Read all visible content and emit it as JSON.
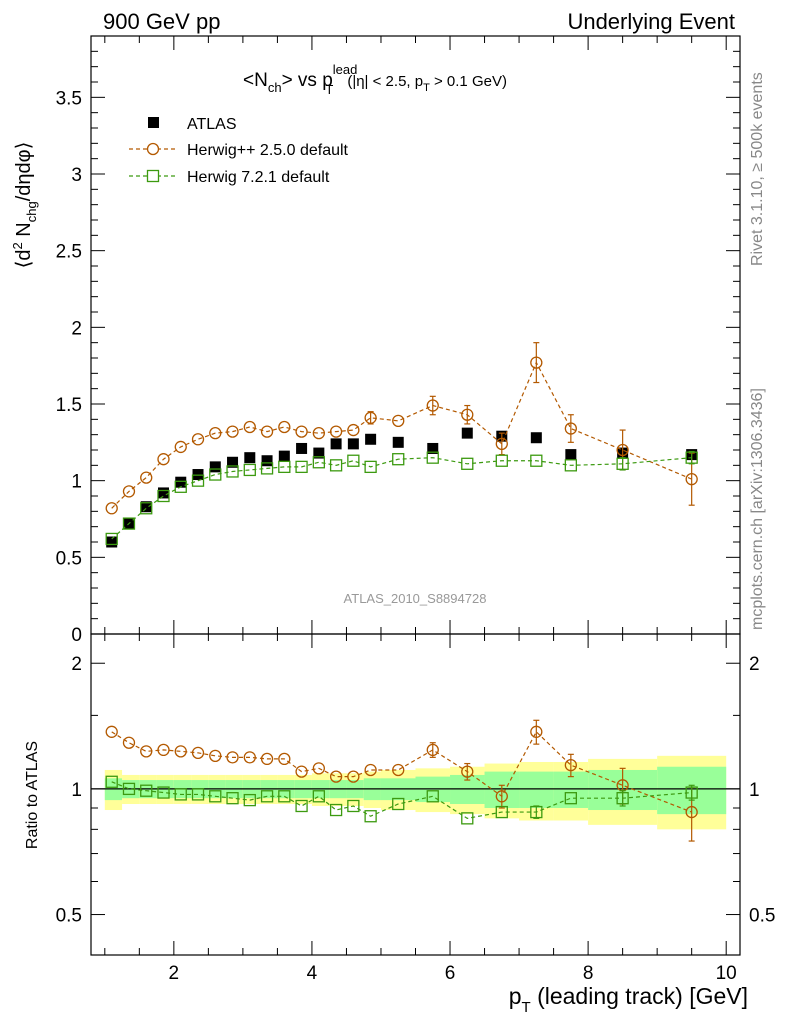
{
  "header": {
    "left": "900 GeV pp",
    "right": "Underlying Event"
  },
  "side_labels": {
    "rivet": "Rivet 3.1.10, ≥ 500k events",
    "mcplots": "mcplots.cern.ch [arXiv:1306.3436]"
  },
  "colors": {
    "atlas": "#000000",
    "herwigpp": "#b35900",
    "herwig7": "#3c9a10",
    "band_inner": "#99ff99",
    "band_outer": "#ffff99",
    "watermark": "#999999"
  },
  "chart_data": [
    {
      "type": "scatter",
      "panel": "main",
      "title": {
        "prefix": "<N",
        "prefix_sub": "ch",
        "mid": "> vs p",
        "p_sup": "lead",
        "p_sub": "T",
        "cut_a": "(|η| < 2.5, p",
        "cut_sub": "T",
        "cut_b": " > 0.1 GeV)"
      },
      "ylabel": {
        "a": "⟨d",
        "sup": "2",
        "b": " N",
        "sub": "chg",
        "c": "/dηdφ⟩"
      },
      "watermark": "ATLAS_2010_S8894728",
      "xlim": [
        0.8,
        10.2
      ],
      "ylim": [
        0,
        3.9
      ],
      "yticks": [
        0,
        0.5,
        1,
        1.5,
        2,
        2.5,
        3,
        3.5
      ],
      "ytick_labels": [
        "0",
        "0.5",
        "1",
        "1.5",
        "2",
        "2.5",
        "3",
        "3.5"
      ],
      "legend_position": "top-left",
      "x": [
        1.1,
        1.35,
        1.6,
        1.85,
        2.1,
        2.35,
        2.6,
        2.85,
        3.1,
        3.35,
        3.6,
        3.85,
        4.1,
        4.35,
        4.6,
        4.85,
        5.25,
        5.75,
        6.25,
        6.75,
        7.25,
        7.75,
        8.5,
        9.5
      ],
      "series": [
        {
          "name": "ATLAS",
          "marker": "filled-square",
          "values": [
            0.6,
            0.72,
            0.83,
            0.92,
            0.99,
            1.04,
            1.09,
            1.12,
            1.15,
            1.13,
            1.16,
            1.21,
            1.18,
            1.24,
            1.24,
            1.27,
            1.25,
            1.21,
            1.31,
            1.29,
            1.28,
            1.17,
            1.18,
            1.17
          ],
          "errors": [
            0.01,
            0.01,
            0.01,
            0.01,
            0.01,
            0.01,
            0.01,
            0.01,
            0.01,
            0.01,
            0.01,
            0.01,
            0.01,
            0.01,
            0.01,
            0.01,
            0.01,
            0.01,
            0.01,
            0.01,
            0.01,
            0.01,
            0.01,
            0.01
          ]
        },
        {
          "name": "Herwig++ 2.5.0 default",
          "marker": "open-circle",
          "values": [
            0.82,
            0.93,
            1.02,
            1.14,
            1.22,
            1.27,
            1.31,
            1.32,
            1.35,
            1.32,
            1.35,
            1.32,
            1.31,
            1.32,
            1.33,
            1.41,
            1.39,
            1.49,
            1.43,
            1.24,
            1.77,
            1.34,
            1.2,
            1.01
          ],
          "errors": [
            0.01,
            0.01,
            0.01,
            0.01,
            0.01,
            0.01,
            0.01,
            0.01,
            0.01,
            0.01,
            0.01,
            0.01,
            0.02,
            0.02,
            0.03,
            0.04,
            0.03,
            0.06,
            0.06,
            0.07,
            0.13,
            0.09,
            0.13,
            0.17
          ]
        },
        {
          "name": "Herwig 7.2.1 default",
          "marker": "open-square",
          "values": [
            0.62,
            0.72,
            0.82,
            0.9,
            0.96,
            1.0,
            1.04,
            1.06,
            1.07,
            1.08,
            1.09,
            1.09,
            1.12,
            1.1,
            1.13,
            1.09,
            1.14,
            1.15,
            1.11,
            1.13,
            1.13,
            1.1,
            1.11,
            1.15
          ],
          "errors": [
            0.01,
            0.01,
            0.01,
            0.01,
            0.01,
            0.01,
            0.01,
            0.01,
            0.01,
            0.01,
            0.01,
            0.01,
            0.01,
            0.01,
            0.01,
            0.01,
            0.02,
            0.02,
            0.02,
            0.02,
            0.03,
            0.03,
            0.04,
            0.04
          ]
        }
      ]
    },
    {
      "type": "scatter",
      "panel": "ratio",
      "ylabel": "Ratio to ATLAS",
      "xlabel": {
        "a": "p",
        "sub": "T",
        "b": " (leading track) [GeV]"
      },
      "xlim": [
        0.8,
        10.2
      ],
      "ylim": [
        0.4,
        2.35
      ],
      "yscale": "log",
      "yticks": [
        0.5,
        1,
        2
      ],
      "ytick_labels": [
        "0.5",
        "1",
        "2"
      ],
      "xticks": [
        2,
        4,
        6,
        8,
        10
      ],
      "xtick_labels": [
        "2",
        "4",
        "6",
        "8",
        "10"
      ],
      "x": [
        1.1,
        1.35,
        1.6,
        1.85,
        2.1,
        2.35,
        2.6,
        2.85,
        3.1,
        3.35,
        3.6,
        3.85,
        4.1,
        4.35,
        4.6,
        4.85,
        5.25,
        5.75,
        6.25,
        6.75,
        7.25,
        7.75,
        8.5,
        9.5
      ],
      "bin_edges": [
        1.0,
        1.25,
        1.5,
        1.75,
        2.0,
        2.25,
        2.5,
        2.75,
        3.0,
        3.25,
        3.5,
        3.75,
        4.0,
        4.25,
        4.5,
        4.75,
        5.0,
        5.5,
        6.0,
        6.5,
        7.0,
        7.5,
        8.0,
        9.0,
        10.0
      ],
      "band_inner": [
        0.06,
        0.05,
        0.05,
        0.05,
        0.05,
        0.05,
        0.05,
        0.05,
        0.05,
        0.05,
        0.05,
        0.05,
        0.05,
        0.05,
        0.05,
        0.06,
        0.06,
        0.07,
        0.08,
        0.1,
        0.1,
        0.1,
        0.11,
        0.13
      ],
      "band_outer": [
        0.11,
        0.08,
        0.08,
        0.08,
        0.08,
        0.08,
        0.08,
        0.08,
        0.08,
        0.08,
        0.08,
        0.08,
        0.09,
        0.09,
        0.09,
        0.1,
        0.11,
        0.12,
        0.13,
        0.15,
        0.16,
        0.16,
        0.18,
        0.2
      ],
      "series": [
        {
          "name": "Herwig++ 2.5.0 default",
          "marker": "open-circle",
          "values": [
            1.37,
            1.29,
            1.23,
            1.24,
            1.23,
            1.22,
            1.2,
            1.19,
            1.19,
            1.18,
            1.18,
            1.1,
            1.12,
            1.07,
            1.07,
            1.11,
            1.11,
            1.24,
            1.1,
            0.96,
            1.37,
            1.14,
            1.02,
            0.88
          ],
          "errors": [
            0.02,
            0.02,
            0.02,
            0.02,
            0.02,
            0.02,
            0.02,
            0.02,
            0.02,
            0.02,
            0.02,
            0.02,
            0.02,
            0.02,
            0.03,
            0.03,
            0.03,
            0.05,
            0.05,
            0.06,
            0.09,
            0.07,
            0.1,
            0.13
          ]
        },
        {
          "name": "Herwig 7.2.1 default",
          "marker": "open-square",
          "values": [
            1.04,
            1.0,
            0.99,
            0.98,
            0.97,
            0.97,
            0.96,
            0.95,
            0.94,
            0.96,
            0.96,
            0.91,
            0.96,
            0.89,
            0.91,
            0.86,
            0.92,
            0.96,
            0.85,
            0.88,
            0.88,
            0.95,
            0.95,
            0.98
          ],
          "errors": [
            0.01,
            0.01,
            0.01,
            0.01,
            0.01,
            0.01,
            0.01,
            0.01,
            0.01,
            0.01,
            0.01,
            0.01,
            0.01,
            0.01,
            0.01,
            0.01,
            0.02,
            0.02,
            0.02,
            0.02,
            0.03,
            0.03,
            0.04,
            0.04
          ]
        }
      ]
    }
  ]
}
